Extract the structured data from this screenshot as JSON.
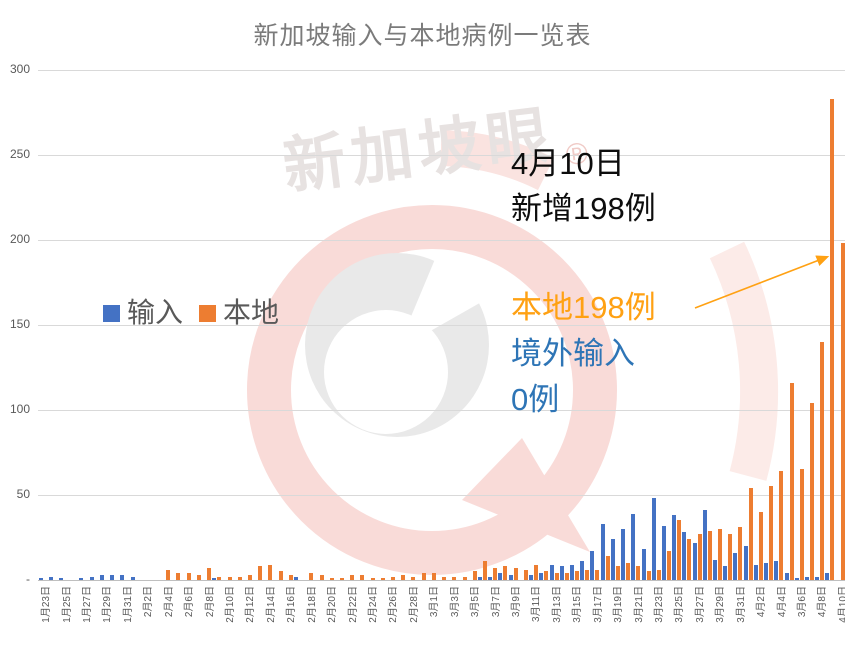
{
  "title": "新加坡输入与本地病例一览表",
  "watermark": {
    "text": "新加坡眼",
    "registered": "®"
  },
  "legend": [
    {
      "label": "输入",
      "color": "#4472C4"
    },
    {
      "label": "本地",
      "color": "#ED7D31"
    }
  ],
  "annotations": {
    "headline_line1": "4月10日",
    "headline_line2": "新增198例",
    "local_label": "本地198例",
    "imported_label_line1": "境外输入",
    "imported_label_line2": "0例",
    "colors": {
      "headline": "#0d0d0d",
      "local": "#FFA113",
      "imported": "#2E75B6"
    }
  },
  "chart_data": {
    "type": "bar",
    "title": "新加坡输入与本地病例一览表",
    "xlabel": "",
    "ylabel": "",
    "ylim": [
      0,
      300
    ],
    "grid": true,
    "legend_position": "inside-left",
    "y_ticks": [
      "300",
      "250",
      "200",
      "150",
      "100",
      "50",
      "-"
    ],
    "x_label_every": 2,
    "x_labels": [
      "1月23日",
      "1月25日",
      "1月27日",
      "1月29日",
      "1月31日",
      "2月2日",
      "2月4日",
      "2月6日",
      "2月8日",
      "2月10日",
      "2月12日",
      "2月14日",
      "2月16日",
      "2月18日",
      "2月20日",
      "2月22日",
      "2月24日",
      "2月26日",
      "2月28日",
      "3月1日",
      "3月3日",
      "3月5日",
      "3月7日",
      "3月9日",
      "3月11日",
      "3月13日",
      "3月15日",
      "3月17日",
      "3月19日",
      "3月21日",
      "3月23日",
      "3月25日",
      "3月27日",
      "3月29日",
      "3月31日",
      "4月2日",
      "4月4日",
      "3月6日",
      "4月8日",
      "4月10日"
    ],
    "series": [
      {
        "name": "输入",
        "color": "#4472C4",
        "values": [
          1,
          2,
          1,
          0,
          1,
          2,
          3,
          3,
          3,
          2,
          0,
          0,
          0,
          0,
          0,
          0,
          0,
          1,
          0,
          0,
          0,
          0,
          0,
          0,
          0,
          2,
          0,
          0,
          0,
          0,
          0,
          0,
          0,
          0,
          0,
          0,
          0,
          0,
          0,
          0,
          0,
          0,
          0,
          2,
          2,
          4,
          3,
          0,
          3,
          4,
          9,
          8,
          9,
          11,
          17,
          33,
          24,
          30,
          39,
          18,
          48,
          32,
          38,
          28,
          22,
          41,
          12,
          8,
          16,
          20,
          9,
          10,
          11,
          4,
          1,
          2,
          2,
          4,
          0
        ]
      },
      {
        "name": "本地",
        "color": "#ED7D31",
        "values": [
          0,
          0,
          0,
          0,
          0,
          0,
          0,
          0,
          0,
          0,
          0,
          0,
          6,
          4,
          4,
          3,
          7,
          2,
          2,
          2,
          3,
          8,
          9,
          5,
          3,
          0,
          4,
          3,
          1,
          1,
          3,
          3,
          1,
          1,
          2,
          3,
          2,
          4,
          4,
          2,
          2,
          2,
          5,
          11,
          7,
          8,
          7,
          6,
          9,
          5,
          4,
          4,
          5,
          6,
          6,
          14,
          8,
          10,
          8,
          5,
          6,
          17,
          35,
          24,
          27,
          29,
          30,
          27,
          31,
          54,
          40,
          55,
          64,
          116,
          65,
          104,
          140,
          283,
          198
        ]
      }
    ]
  }
}
